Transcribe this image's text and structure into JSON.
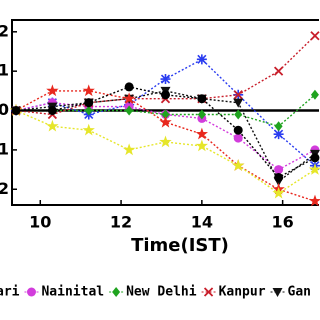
{
  "chart_data": {
    "type": "line",
    "x_label": "Time(IST)",
    "x": [
      9.4,
      10.3,
      11.2,
      12.2,
      13.1,
      14,
      14.9,
      15.9,
      16.8
    ],
    "xlim": [
      9.3,
      16.9
    ],
    "xticks": [
      10,
      12,
      14,
      16
    ],
    "ylim": [
      -2.4,
      2.3
    ],
    "yticks": [
      {
        "value": 2,
        "label": "2"
      },
      {
        "value": 1,
        "label": "1"
      },
      0,
      {
        "value": -1,
        "label": "1"
      },
      {
        "value": -2,
        "label": "2"
      }
    ],
    "hline": 0,
    "series": [
      {
        "name": "ari",
        "color": "#2a3cf0",
        "marker": "asterisk",
        "values": [
          0,
          0.2,
          -0.1,
          0.15,
          0.8,
          1.3,
          0.4,
          -0.6,
          -1.4
        ]
      },
      {
        "name": "Nainital",
        "color": "#d23cdc",
        "marker": "circle",
        "values": [
          0,
          0.2,
          0.1,
          0.1,
          -0.1,
          -0.2,
          -0.7,
          -1.5,
          -1.0
        ]
      },
      {
        "name": "New Delhi",
        "color": "#1fa31f",
        "marker": "diamond",
        "values": [
          0,
          0,
          0,
          0,
          -0.1,
          -0.1,
          -0.1,
          -0.4,
          0.4
        ]
      },
      {
        "name": "Kanpur",
        "color": "#c81e2a",
        "marker": "x",
        "values": [
          0,
          -0.1,
          0.2,
          0.3,
          0.3,
          0.3,
          0.4,
          1.0,
          1.9
        ]
      },
      {
        "name": "Gan",
        "color": "#111111",
        "marker": "triangle",
        "values": [
          0,
          0.1,
          0.2,
          0.3,
          0.5,
          0.3,
          0.2,
          -1.8,
          -1.1
        ]
      },
      {
        "color": "#e8281e",
        "marker": "star",
        "values": [
          0,
          0.5,
          0.5,
          0.3,
          -0.3,
          -0.6,
          -1.4,
          -2.0,
          -2.3
        ]
      },
      {
        "color": "#e6e62a",
        "marker": "star",
        "values": [
          0,
          -0.4,
          -0.5,
          -1.0,
          -0.8,
          -0.9,
          -1.4,
          -2.1,
          -1.5
        ]
      },
      {
        "color": "#000000",
        "marker": "circle",
        "values": [
          0,
          0,
          0.2,
          0.6,
          0.4,
          0.3,
          -0.5,
          -1.7,
          -1.2
        ]
      }
    ]
  }
}
